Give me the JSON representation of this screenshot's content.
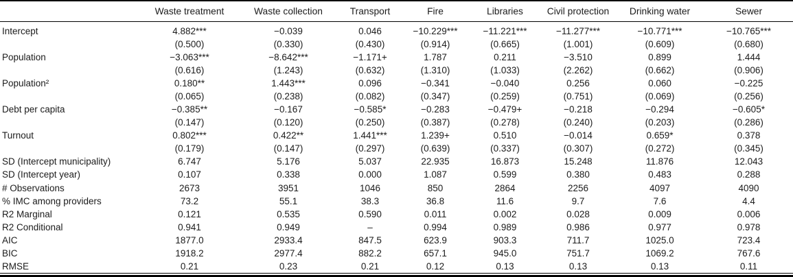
{
  "colors": {
    "background": "#ffffff",
    "text": "#1b1b1b",
    "rule": "#000000"
  },
  "table": {
    "label_header": "",
    "columns": [
      "Waste treatment",
      "Waste collection",
      "Transport",
      "Fire",
      "Libraries",
      "Civil protection",
      "Drinking water",
      "Sewer"
    ],
    "rows": [
      {
        "label": "Intercept",
        "values": [
          "4.882***",
          "−0.039",
          "0.046",
          "−10.229***",
          "−11.221***",
          "−11.277***",
          "−10.771***",
          "−10.765***"
        ]
      },
      {
        "label": "",
        "values": [
          "(0.500)",
          "(0.330)",
          "(0.430)",
          "(0.914)",
          "(0.665)",
          "(1.001)",
          "(0.609)",
          "(0.680)"
        ]
      },
      {
        "label": "Population",
        "values": [
          "−3.063***",
          "−8.642***",
          "−1.171+",
          "1.787",
          "0.211",
          "−3.510",
          "0.899",
          "1.444"
        ]
      },
      {
        "label": "",
        "values": [
          "(0.616)",
          "(1.243)",
          "(0.632)",
          "(1.310)",
          "(1.033)",
          "(2.262)",
          "(0.662)",
          "(0.906)"
        ]
      },
      {
        "label": "Population²",
        "values": [
          "0.180**",
          "1.443***",
          "0.096",
          "−0.341",
          "−0.040",
          "0.256",
          "0.060",
          "−0.225"
        ]
      },
      {
        "label": "",
        "values": [
          "(0.065)",
          "(0.238)",
          "(0.082)",
          "(0.347)",
          "(0.259)",
          "(0.751)",
          "(0.069)",
          "(0.256)"
        ]
      },
      {
        "label": "Debt per capita",
        "values": [
          "−0.385**",
          "−0.167",
          "−0.585*",
          "−0.283",
          "−0.479+",
          "−0.218",
          "−0.294",
          "−0.605*"
        ]
      },
      {
        "label": "",
        "values": [
          "(0.147)",
          "(0.120)",
          "(0.250)",
          "(0.387)",
          "(0.278)",
          "(0.240)",
          "(0.203)",
          "(0.286)"
        ]
      },
      {
        "label": "Turnout",
        "values": [
          "0.802***",
          "0.422**",
          "1.441***",
          "1.239+",
          "0.510",
          "−0.014",
          "0.659*",
          "0.378"
        ]
      },
      {
        "label": "",
        "values": [
          "(0.179)",
          "(0.147)",
          "(0.297)",
          "(0.639)",
          "(0.337)",
          "(0.307)",
          "(0.272)",
          "(0.345)"
        ]
      },
      {
        "label": "SD (Intercept municipality)",
        "values": [
          "6.747",
          "5.176",
          "5.037",
          "22.935",
          "16.873",
          "15.248",
          "11.876",
          "12.043"
        ]
      },
      {
        "label": "SD (Intercept year)",
        "values": [
          "0.107",
          "0.338",
          "0.000",
          "1.087",
          "0.599",
          "0.380",
          "0.483",
          "0.288"
        ]
      },
      {
        "label": "# Observations",
        "values": [
          "2673",
          "3951",
          "1046",
          "850",
          "2864",
          "2256",
          "4097",
          "4090"
        ]
      },
      {
        "label": "% IMC among providers",
        "values": [
          "73.2",
          "55.1",
          "38.3",
          "36.8",
          "11.6",
          "9.7",
          "7.6",
          "4.4"
        ]
      },
      {
        "label": "R2 Marginal",
        "values": [
          "0.121",
          "0.535",
          "0.590",
          "0.011",
          "0.002",
          "0.028",
          "0.009",
          "0.006"
        ]
      },
      {
        "label": "R2 Conditional",
        "values": [
          "0.941",
          "0.949",
          "–",
          "0.994",
          "0.989",
          "0.986",
          "0.977",
          "0.978"
        ]
      },
      {
        "label": "AIC",
        "values": [
          "1877.0",
          "2933.4",
          "847.5",
          "623.9",
          "903.3",
          "711.7",
          "1025.0",
          "723.4"
        ]
      },
      {
        "label": "BIC",
        "values": [
          "1918.2",
          "2977.4",
          "882.2",
          "657.1",
          "945.0",
          "751.7",
          "1069.2",
          "767.6"
        ]
      },
      {
        "label": "RMSE",
        "values": [
          "0.21",
          "0.23",
          "0.21",
          "0.12",
          "0.13",
          "0.13",
          "0.13",
          "0.11"
        ]
      }
    ]
  }
}
